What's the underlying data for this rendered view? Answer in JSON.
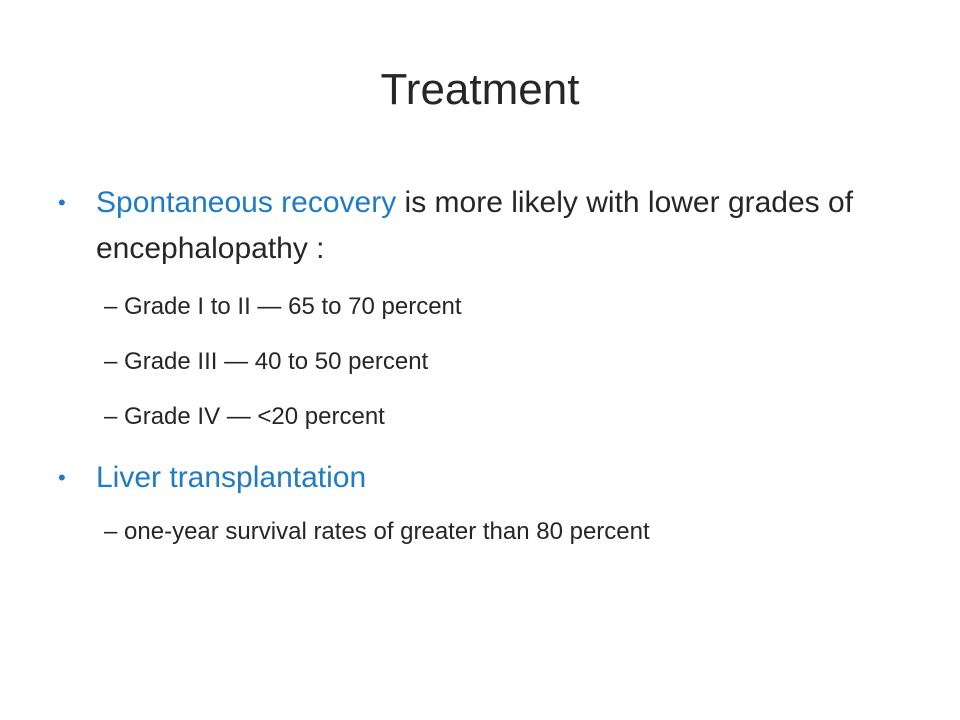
{
  "slide": {
    "title": "Treatment",
    "bullet_glyph": "•",
    "dash_glyph": "–",
    "items": [
      {
        "highlight": "Spontaneous recovery",
        "rest": " is more likely with lower grades of encephalopathy :",
        "sub": [
          "Grade I to II — 65 to 70 percent",
          "Grade III — 40 to 50 percent",
          "Grade IV — <20 percent"
        ]
      },
      {
        "highlight": "Liver transplantation",
        "rest": "",
        "sub": [
          "one-year survival rates of greater than 80 percent"
        ]
      }
    ],
    "colors": {
      "accent": "#1f7bc4",
      "text": "#262626",
      "background": "#ffffff"
    }
  }
}
